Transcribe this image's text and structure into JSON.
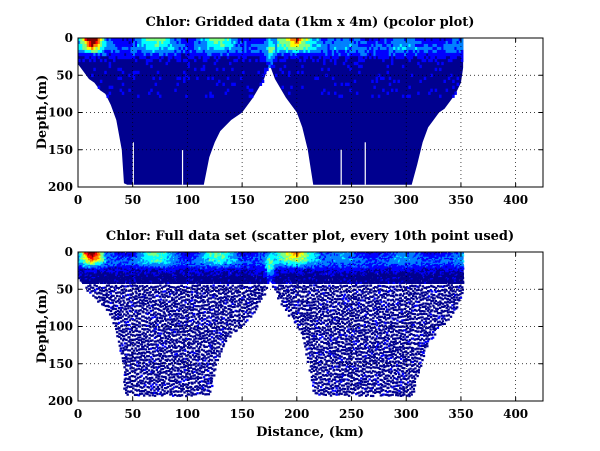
{
  "colors": {
    "background": "#ffffff",
    "deep_water": "#00008f",
    "colormap": [
      "#00008f",
      "#0000ff",
      "#0080ff",
      "#00ffff",
      "#80ff80",
      "#ffff00",
      "#ff8000",
      "#ff0000",
      "#800000"
    ]
  },
  "chart_data": [
    {
      "type": "heatmap",
      "title": "Chlor: Gridded data (1km x 4m) (pcolor plot)",
      "xlabel": "",
      "ylabel": "Depth,(m)",
      "xlim": [
        0,
        425
      ],
      "ylim": [
        200,
        0
      ],
      "xticks": [
        0,
        50,
        100,
        150,
        200,
        250,
        300,
        350,
        400
      ],
      "yticks": [
        0,
        50,
        100,
        150,
        200
      ],
      "grid": true,
      "x_extent": [
        0,
        352
      ],
      "cell_size": {
        "x_km": 1,
        "y_m": 4
      },
      "bottom_profile": [
        [
          0,
          35
        ],
        [
          5,
          45
        ],
        [
          10,
          55
        ],
        [
          15,
          60
        ],
        [
          20,
          70
        ],
        [
          25,
          75
        ],
        [
          30,
          90
        ],
        [
          35,
          110
        ],
        [
          40,
          150
        ],
        [
          42,
          195
        ],
        [
          45,
          197
        ],
        [
          60,
          197
        ],
        [
          75,
          197
        ],
        [
          90,
          197
        ],
        [
          105,
          197
        ],
        [
          115,
          197
        ],
        [
          120,
          160
        ],
        [
          125,
          140
        ],
        [
          130,
          125
        ],
        [
          140,
          110
        ],
        [
          150,
          100
        ],
        [
          160,
          80
        ],
        [
          170,
          55
        ],
        [
          175,
          35
        ],
        [
          180,
          55
        ],
        [
          190,
          80
        ],
        [
          200,
          100
        ],
        [
          205,
          120
        ],
        [
          210,
          150
        ],
        [
          215,
          197
        ],
        [
          230,
          197
        ],
        [
          245,
          197
        ],
        [
          260,
          197
        ],
        [
          275,
          197
        ],
        [
          290,
          197
        ],
        [
          305,
          197
        ],
        [
          310,
          170
        ],
        [
          315,
          140
        ],
        [
          320,
          120
        ],
        [
          325,
          110
        ],
        [
          330,
          100
        ],
        [
          335,
          95
        ],
        [
          340,
          85
        ],
        [
          345,
          75
        ],
        [
          350,
          60
        ],
        [
          352,
          40
        ]
      ],
      "surface_maximum": [
        {
          "x": [
            5,
            20
          ],
          "depth": [
            0,
            15
          ],
          "value": "high"
        },
        {
          "x": [
            185,
            230
          ],
          "depth": [
            0,
            15
          ],
          "value": "moderate"
        },
        {
          "x": [
            60,
            160
          ],
          "depth": [
            0,
            20
          ],
          "value": "low-moderate"
        }
      ]
    },
    {
      "type": "scatter",
      "title": "Chlor: Full data set (scatter plot, every 10th point used)",
      "xlabel": "Distance, (km)",
      "ylabel": "Depth,(m)",
      "xlim": [
        0,
        425
      ],
      "ylim": [
        200,
        0
      ],
      "xticks": [
        0,
        50,
        100,
        150,
        200,
        250,
        300,
        350,
        400
      ],
      "yticks": [
        0,
        50,
        100,
        150,
        200
      ],
      "grid": true,
      "x_extent": [
        0,
        352
      ],
      "sampling": "every 10th point",
      "bottom_profile": [
        [
          0,
          35
        ],
        [
          5,
          45
        ],
        [
          10,
          55
        ],
        [
          15,
          60
        ],
        [
          20,
          70
        ],
        [
          25,
          75
        ],
        [
          30,
          90
        ],
        [
          35,
          110
        ],
        [
          40,
          150
        ],
        [
          42,
          190
        ],
        [
          45,
          192
        ],
        [
          60,
          192
        ],
        [
          75,
          192
        ],
        [
          90,
          192
        ],
        [
          105,
          192
        ],
        [
          120,
          192
        ],
        [
          125,
          155
        ],
        [
          130,
          130
        ],
        [
          140,
          110
        ],
        [
          150,
          100
        ],
        [
          160,
          80
        ],
        [
          170,
          55
        ],
        [
          175,
          35
        ],
        [
          180,
          55
        ],
        [
          190,
          80
        ],
        [
          200,
          100
        ],
        [
          205,
          120
        ],
        [
          210,
          150
        ],
        [
          215,
          192
        ],
        [
          230,
          192
        ],
        [
          245,
          192
        ],
        [
          260,
          192
        ],
        [
          275,
          192
        ],
        [
          290,
          192
        ],
        [
          305,
          192
        ],
        [
          310,
          165
        ],
        [
          315,
          140
        ],
        [
          320,
          120
        ],
        [
          325,
          110
        ],
        [
          330,
          100
        ],
        [
          335,
          95
        ],
        [
          340,
          85
        ],
        [
          345,
          75
        ],
        [
          350,
          60
        ],
        [
          352,
          40
        ]
      ]
    }
  ]
}
